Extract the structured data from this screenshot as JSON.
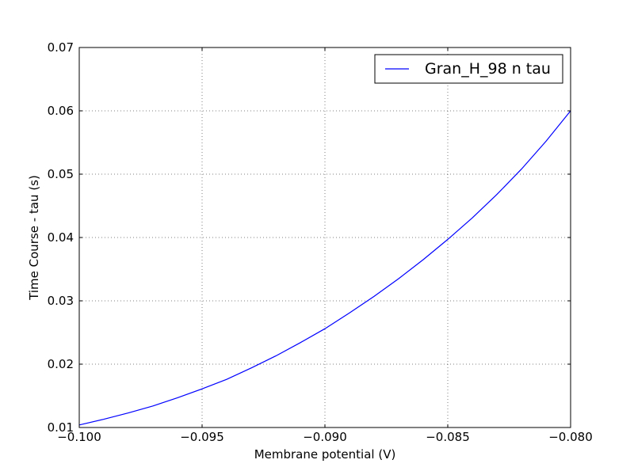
{
  "chart_data": {
    "type": "line",
    "title": "",
    "xlabel": "Membrane potential (V)",
    "ylabel": "Time Course - tau (s)",
    "xlim": [
      -0.1,
      -0.08
    ],
    "ylim": [
      0.01,
      0.07
    ],
    "x_ticks": [
      -0.1,
      -0.095,
      -0.09,
      -0.085,
      -0.08
    ],
    "x_tick_labels": [
      "−0.100",
      "−0.095",
      "−0.090",
      "−0.085",
      "−0.080"
    ],
    "y_ticks": [
      0.01,
      0.02,
      0.03,
      0.04,
      0.05,
      0.06,
      0.07
    ],
    "y_tick_labels": [
      "0.01",
      "0.02",
      "0.03",
      "0.04",
      "0.05",
      "0.06",
      "0.07"
    ],
    "grid": true,
    "legend_position": "top-right",
    "series": [
      {
        "name": "Gran_H_98 n tau",
        "color": "#0000ff",
        "x": [
          -0.1,
          -0.099,
          -0.098,
          -0.097,
          -0.096,
          -0.095,
          -0.094,
          -0.093,
          -0.092,
          -0.091,
          -0.09,
          -0.089,
          -0.088,
          -0.087,
          -0.086,
          -0.085,
          -0.084,
          -0.083,
          -0.082,
          -0.081,
          -0.08
        ],
        "y": [
          0.0104,
          0.0113,
          0.0123,
          0.0134,
          0.0147,
          0.0161,
          0.0176,
          0.0194,
          0.0213,
          0.0234,
          0.0256,
          0.0281,
          0.0307,
          0.0335,
          0.0365,
          0.0397,
          0.0431,
          0.0468,
          0.0508,
          0.0552,
          0.06
        ]
      }
    ]
  }
}
